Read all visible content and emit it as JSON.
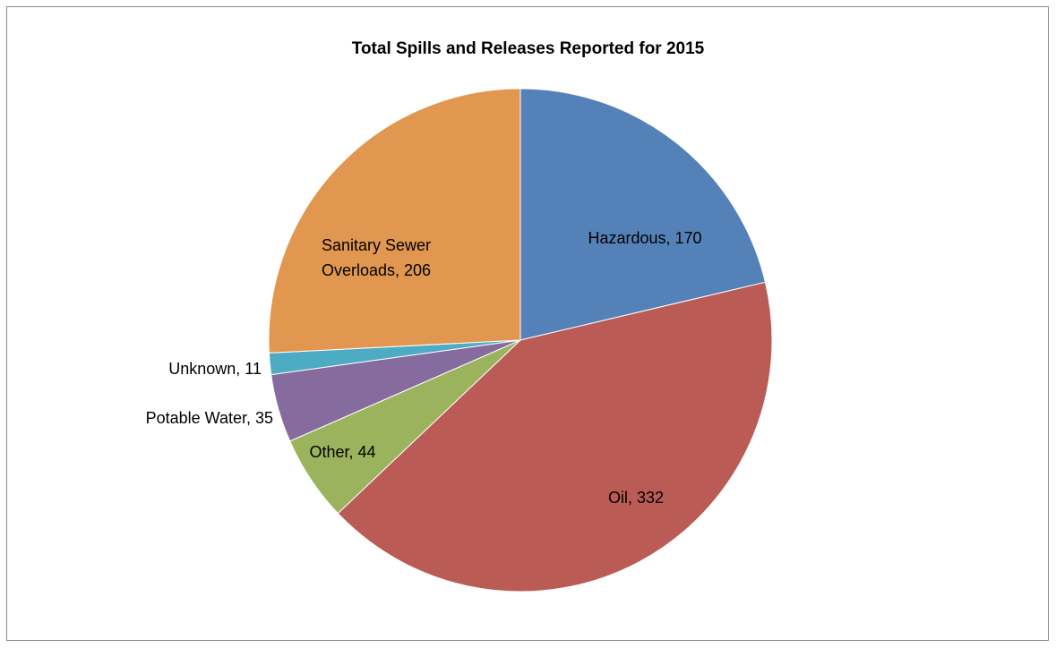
{
  "chart_data": {
    "type": "pie",
    "title": "Total Spills and Releases Reported for 2015",
    "categories": [
      "Hazardous",
      "Oil",
      "Other",
      "Potable Water",
      "Unknown",
      "Sanitary Sewer Overloads"
    ],
    "values": [
      170,
      332,
      44,
      35,
      11,
      206
    ],
    "value_labels": [
      "Hazardous, 170",
      "Oil, 332",
      "Other, 44",
      "Potable Water, 35",
      "Unknown, 11",
      "Sanitary Sewer Overloads, 206"
    ],
    "colors": [
      "#5482b8",
      "#ba5b55",
      "#9cb35e",
      "#866b9f",
      "#4eabc4",
      "#e1974f"
    ]
  }
}
